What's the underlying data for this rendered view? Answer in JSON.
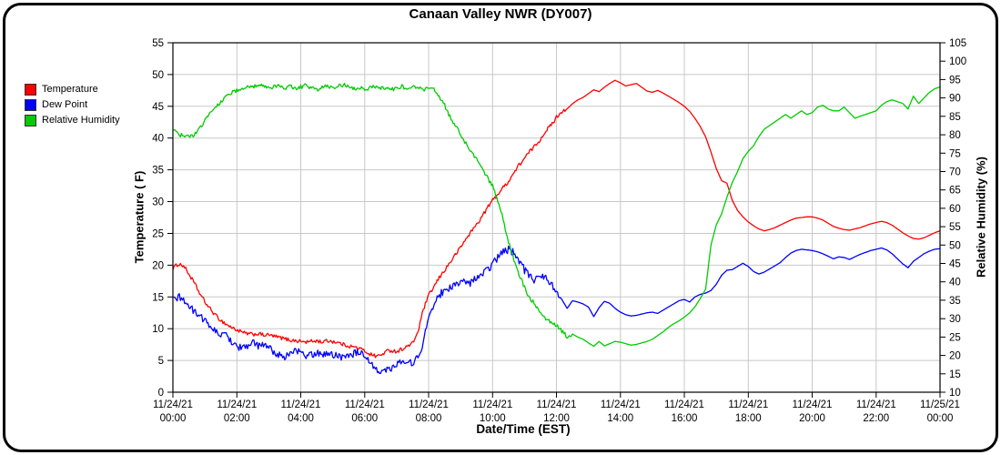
{
  "title": "Canaan Valley NWR (DY007)",
  "legend": {
    "items": [
      {
        "label": "Temperature",
        "color": "#ff0000"
      },
      {
        "label": "Dew Point",
        "color": "#0000ff"
      },
      {
        "label": "Relative Humidity",
        "color": "#00cc00"
      }
    ]
  },
  "chart_data": {
    "type": "line",
    "title": "Canaan Valley NWR (DY007)",
    "x_axis": {
      "label": "Date/Time (EST)",
      "range_hours": [
        0,
        24
      ],
      "tick_interval_hours": 2,
      "tick_labels": [
        [
          "11/24/21",
          "00:00"
        ],
        [
          "11/24/21",
          "02:00"
        ],
        [
          "11/24/21",
          "04:00"
        ],
        [
          "11/24/21",
          "06:00"
        ],
        [
          "11/24/21",
          "08:00"
        ],
        [
          "11/24/21",
          "10:00"
        ],
        [
          "11/24/21",
          "12:00"
        ],
        [
          "11/24/21",
          "14:00"
        ],
        [
          "11/24/21",
          "16:00"
        ],
        [
          "11/24/21",
          "18:00"
        ],
        [
          "11/24/21",
          "20:00"
        ],
        [
          "11/24/21",
          "22:00"
        ],
        [
          "11/25/21",
          "00:00"
        ]
      ]
    },
    "y_left": {
      "label": "Temperature ( F)",
      "min": 0,
      "max": 55,
      "tick_step": 5
    },
    "y_right": {
      "label": "Relative Humidity (%)",
      "min": 10,
      "max": 105,
      "tick_step": 5
    },
    "grid": {
      "color": "#c8c8c8",
      "vertical": true,
      "horizontal": true
    },
    "legend_position": "top-left",
    "sampling": {
      "start_hour": 0,
      "step_minutes": 10
    },
    "series": [
      {
        "name": "Temperature",
        "axis": "left",
        "color": "#ff0000",
        "noisy_until_hour": 12.3,
        "noise_amp": 0.3,
        "values": [
          19.5,
          20.2,
          19.9,
          18.6,
          17.2,
          15.6,
          14.2,
          13.1,
          12.1,
          11.3,
          10.7,
          10.2,
          9.8,
          9.4,
          9.2,
          9.1,
          9.2,
          9.0,
          9.0,
          8.8,
          8.6,
          8.4,
          8.2,
          8.1,
          8.0,
          7.9,
          8.0,
          8.1,
          7.9,
          8.1,
          8.0,
          7.8,
          7.5,
          7.3,
          7.1,
          6.9,
          6.5,
          6.0,
          5.7,
          5.8,
          6.4,
          6.6,
          6.4,
          6.8,
          7.2,
          7.7,
          9.5,
          13.0,
          15.2,
          16.6,
          18.0,
          19.2,
          20.4,
          21.6,
          22.8,
          24.1,
          25.3,
          26.4,
          27.6,
          29.0,
          30.2,
          31.2,
          32.2,
          33.2,
          34.5,
          35.8,
          36.8,
          37.9,
          38.8,
          39.8,
          41.2,
          42.0,
          43.3,
          44.2,
          44.6,
          45.4,
          46.0,
          46.4,
          47.0,
          47.6,
          47.3,
          48.0,
          48.6,
          49.1,
          48.7,
          48.2,
          48.4,
          48.6,
          48.0,
          47.4,
          47.2,
          47.5,
          47.1,
          46.6,
          46.1,
          45.6,
          45.0,
          44.2,
          43.1,
          41.8,
          40.2,
          37.8,
          35.2,
          33.3,
          32.9,
          30.2,
          28.6,
          27.6,
          26.8,
          26.2,
          25.7,
          25.4,
          25.6,
          25.9,
          26.3,
          26.7,
          27.1,
          27.4,
          27.5,
          27.6,
          27.6,
          27.4,
          27.1,
          26.6,
          26.1,
          25.8,
          25.6,
          25.5,
          25.7,
          25.9,
          26.2,
          26.5,
          26.7,
          26.9,
          26.7,
          26.3,
          25.7,
          25.1,
          24.6,
          24.2,
          24.1,
          24.3,
          24.7,
          25.1,
          25.4
        ]
      },
      {
        "name": "Dew Point",
        "axis": "left",
        "color": "#0000ff",
        "noisy_until_hour": 12.1,
        "noise_amp": 0.6,
        "values": [
          14.4,
          15.0,
          14.6,
          13.6,
          12.6,
          12.3,
          11.2,
          10.4,
          9.6,
          9.0,
          8.9,
          8.1,
          7.3,
          6.9,
          7.4,
          7.7,
          7.3,
          7.5,
          7.0,
          6.3,
          5.8,
          5.6,
          6.1,
          6.6,
          6.2,
          5.6,
          5.9,
          6.2,
          5.9,
          6.2,
          5.9,
          5.7,
          5.6,
          6.0,
          6.1,
          6.4,
          5.3,
          4.6,
          3.8,
          3.4,
          3.5,
          3.8,
          4.6,
          4.8,
          4.3,
          4.8,
          5.3,
          8.0,
          11.5,
          13.9,
          15.3,
          16.0,
          16.4,
          16.8,
          17.1,
          17.4,
          17.2,
          17.9,
          18.4,
          19.2,
          20.1,
          21.2,
          22.1,
          22.5,
          21.9,
          20.8,
          19.2,
          18.2,
          17.6,
          18.6,
          17.9,
          17.0,
          15.9,
          14.6,
          13.2,
          14.4,
          14.2,
          13.9,
          13.4,
          11.9,
          13.3,
          14.3,
          14.0,
          13.2,
          12.6,
          12.2,
          12.0,
          12.1,
          12.3,
          12.5,
          12.6,
          12.4,
          12.9,
          13.4,
          13.9,
          14.4,
          14.6,
          14.2,
          15.0,
          15.4,
          15.6,
          16.0,
          17.0,
          18.4,
          19.2,
          19.3,
          19.8,
          20.3,
          19.8,
          19.0,
          18.6,
          18.9,
          19.4,
          19.9,
          20.4,
          21.2,
          21.9,
          22.3,
          22.5,
          22.4,
          22.3,
          22.1,
          21.8,
          21.4,
          21.0,
          21.3,
          21.2,
          20.9,
          21.3,
          21.7,
          22.0,
          22.3,
          22.5,
          22.7,
          22.4,
          21.8,
          21.0,
          20.2,
          19.6,
          20.6,
          21.2,
          21.8,
          22.2,
          22.5,
          22.6
        ]
      },
      {
        "name": "Relative Humidity",
        "axis": "right",
        "color": "#00cc00",
        "noisy_until_hour": 12.5,
        "noise_amp": 0.55,
        "values": [
          81.3,
          80.2,
          79.6,
          79.4,
          80.0,
          81.5,
          84.0,
          86.0,
          87.5,
          89.0,
          90.5,
          91.5,
          92.0,
          92.6,
          93.4,
          92.8,
          93.6,
          93.0,
          92.4,
          93.0,
          93.6,
          92.8,
          93.2,
          92.6,
          93.0,
          93.4,
          92.8,
          92.2,
          92.8,
          93.3,
          92.6,
          93.0,
          93.6,
          93.1,
          92.4,
          92.9,
          92.3,
          92.7,
          93.1,
          92.5,
          92.9,
          92.3,
          92.7,
          93.1,
          92.5,
          92.9,
          92.8,
          92.4,
          92.5,
          92.2,
          90.5,
          88.0,
          85.0,
          82.5,
          80.0,
          77.5,
          75.5,
          73.5,
          71.0,
          68.5,
          66.0,
          62.0,
          57.0,
          51.0,
          46.0,
          42.0,
          38.5,
          35.5,
          34.0,
          31.5,
          30.0,
          29.0,
          28.2,
          26.5,
          25.2,
          25.8,
          25.0,
          24.4,
          23.4,
          22.5,
          23.8,
          22.6,
          23.2,
          23.8,
          23.6,
          23.2,
          22.8,
          23.0,
          23.4,
          23.8,
          24.4,
          25.4,
          26.4,
          27.6,
          28.6,
          29.4,
          30.4,
          31.6,
          33.2,
          35.5,
          38.0,
          50.0,
          55.5,
          58.5,
          63.0,
          67.0,
          70.0,
          73.5,
          75.5,
          77.0,
          79.5,
          81.5,
          82.5,
          83.5,
          84.5,
          85.5,
          84.5,
          85.5,
          86.5,
          85.5,
          86.0,
          87.5,
          88.0,
          87.0,
          86.5,
          86.5,
          87.5,
          86.0,
          84.5,
          85.0,
          85.5,
          86.0,
          86.5,
          88.0,
          89.0,
          89.5,
          89.0,
          88.5,
          87.0,
          90.5,
          88.5,
          90.0,
          91.5,
          92.5,
          93.0
        ]
      }
    ]
  }
}
